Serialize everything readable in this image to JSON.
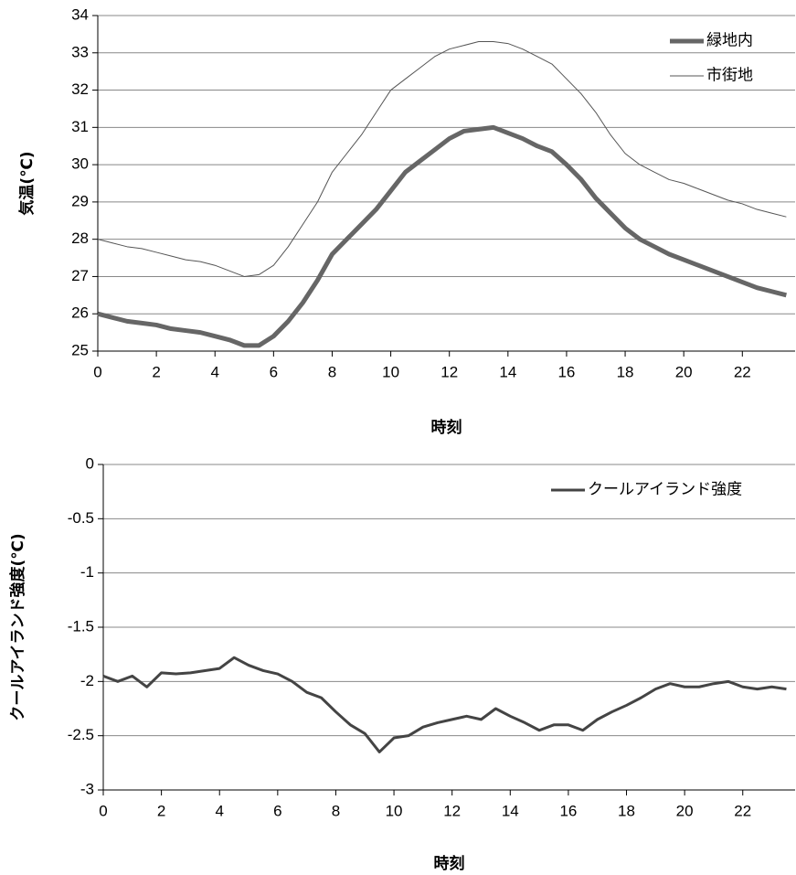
{
  "chart_data": [
    {
      "type": "line",
      "ylabel": "気温(℃)",
      "xlabel": "時刻",
      "x": [
        0,
        0.5,
        1,
        1.5,
        2,
        2.5,
        3,
        3.5,
        4,
        4.5,
        5,
        5.5,
        6,
        6.5,
        7,
        7.5,
        8,
        8.5,
        9,
        9.5,
        10,
        10.5,
        11,
        11.5,
        12,
        12.5,
        13,
        13.5,
        14,
        14.5,
        15,
        15.5,
        16,
        16.5,
        17,
        17.5,
        18,
        18.5,
        19,
        19.5,
        20,
        20.5,
        21,
        21.5,
        22,
        22.5,
        23,
        23.5
      ],
      "series": [
        {
          "name": "緑地内",
          "color": "#666666",
          "width": 5,
          "values": [
            26.0,
            25.9,
            25.8,
            25.75,
            25.7,
            25.6,
            25.55,
            25.5,
            25.4,
            25.3,
            25.15,
            25.15,
            25.4,
            25.8,
            26.3,
            26.9,
            27.6,
            28.0,
            28.4,
            28.8,
            29.3,
            29.8,
            30.1,
            30.4,
            30.7,
            30.9,
            30.95,
            31.0,
            30.85,
            30.7,
            30.5,
            30.35,
            30.0,
            29.6,
            29.1,
            28.7,
            28.3,
            28.0,
            27.8,
            27.6,
            27.45,
            27.3,
            27.15,
            27.0,
            26.85,
            26.7,
            26.6,
            26.5
          ]
        },
        {
          "name": "市街地",
          "color": "#555555",
          "width": 1,
          "values": [
            28.0,
            27.9,
            27.8,
            27.75,
            27.65,
            27.55,
            27.45,
            27.4,
            27.3,
            27.15,
            27.0,
            27.05,
            27.3,
            27.8,
            28.4,
            29.0,
            29.8,
            30.3,
            30.8,
            31.4,
            32.0,
            32.3,
            32.6,
            32.9,
            33.1,
            33.2,
            33.3,
            33.3,
            33.25,
            33.1,
            32.9,
            32.7,
            32.3,
            31.9,
            31.4,
            30.8,
            30.3,
            30.0,
            29.8,
            29.6,
            29.5,
            29.35,
            29.2,
            29.05,
            28.95,
            28.8,
            28.7,
            28.6
          ]
        }
      ],
      "xlim": [
        0,
        23.8
      ],
      "xticks": [
        0,
        2,
        4,
        6,
        8,
        10,
        12,
        14,
        16,
        18,
        20,
        22
      ],
      "ylim": [
        25,
        34
      ],
      "yticks": [
        25,
        26,
        27,
        28,
        29,
        30,
        31,
        32,
        33,
        34
      ],
      "grid": true,
      "legend": "top-right"
    },
    {
      "type": "line",
      "ylabel": "クールアイランド強度(℃)",
      "xlabel": "時刻",
      "x": [
        0,
        0.5,
        1,
        1.5,
        2,
        2.5,
        3,
        3.5,
        4,
        4.5,
        5,
        5.5,
        6,
        6.5,
        7,
        7.5,
        8,
        8.5,
        9,
        9.5,
        10,
        10.5,
        11,
        11.5,
        12,
        12.5,
        13,
        13.5,
        14,
        14.5,
        15,
        15.5,
        16,
        16.5,
        17,
        17.5,
        18,
        18.5,
        19,
        19.5,
        20,
        20.5,
        21,
        21.5,
        22,
        22.5,
        23,
        23.5
      ],
      "series": [
        {
          "name": "クールアイランド強度",
          "color": "#444444",
          "width": 3,
          "values": [
            -1.95,
            -2.0,
            -1.95,
            -2.05,
            -1.92,
            -1.93,
            -1.92,
            -1.9,
            -1.88,
            -1.78,
            -1.85,
            -1.9,
            -1.93,
            -2.0,
            -2.1,
            -2.15,
            -2.28,
            -2.4,
            -2.48,
            -2.65,
            -2.52,
            -2.5,
            -2.42,
            -2.38,
            -2.35,
            -2.32,
            -2.35,
            -2.25,
            -2.32,
            -2.38,
            -2.45,
            -2.4,
            -2.4,
            -2.45,
            -2.35,
            -2.28,
            -2.22,
            -2.15,
            -2.07,
            -2.02,
            -2.05,
            -2.05,
            -2.02,
            -2.0,
            -2.05,
            -2.07,
            -2.05,
            -2.07
          ]
        }
      ],
      "xlim": [
        0,
        23.8
      ],
      "xticks": [
        0,
        2,
        4,
        6,
        8,
        10,
        12,
        14,
        16,
        18,
        20,
        22
      ],
      "ylim": [
        -3,
        0
      ],
      "yticks": [
        -3,
        -2.5,
        -2,
        -1.5,
        -1,
        -0.5,
        0
      ],
      "grid": true,
      "legend": "top-right"
    }
  ]
}
